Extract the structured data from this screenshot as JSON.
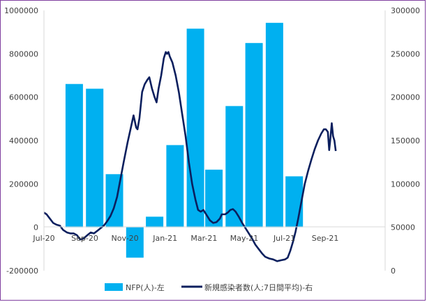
{
  "chart_data": {
    "type": "bar+line",
    "title": "",
    "x_tick_labels": [
      "Jul-20",
      "Sep-20",
      "Nov-20",
      "Jan-21",
      "Mar-21",
      "May-21",
      "Jul-21",
      "Sep-21"
    ],
    "left_axis": {
      "ylim": [
        -200000,
        1000000
      ],
      "ticks": [
        -200000,
        0,
        200000,
        400000,
        600000,
        800000,
        1000000
      ]
    },
    "right_axis": {
      "ylim": [
        0,
        300000
      ],
      "ticks": [
        0,
        50000,
        100000,
        150000,
        200000,
        250000,
        300000
      ]
    },
    "colors": {
      "bars": "#00b0f0",
      "line": "#0b1f5e",
      "axis": "#d9d9d9",
      "frame": "#7f3f9f"
    },
    "legend": {
      "placement": "bottom",
      "bar_label": "NFP(人)-左",
      "line_label": "新規感染者数(人;7日間平均)-右"
    },
    "bar_series": {
      "name": "NFP(人)-左",
      "axis": "left",
      "values": [
        {
          "month": "2020-08",
          "value": 661000
        },
        {
          "month": "2020-09",
          "value": 639000
        },
        {
          "month": "2020-10",
          "value": 245000
        },
        {
          "month": "2020-11",
          "value": -140000
        },
        {
          "month": "2020-12",
          "value": 49000
        },
        {
          "month": "2021-01",
          "value": 379000
        },
        {
          "month": "2021-02",
          "value": 916000
        },
        {
          "month": "2021-03",
          "value": 266000
        },
        {
          "month": "2021-04",
          "value": 559000
        },
        {
          "month": "2021-05",
          "value": 850000
        },
        {
          "month": "2021-06",
          "value": 943000
        },
        {
          "month": "2021-07",
          "value": 235000
        }
      ]
    },
    "line_series": {
      "name": "新規感染者数(人;7日間平均)-右",
      "axis": "right",
      "points": [
        [
          "2020-07-01",
          67000
        ],
        [
          "2020-07-05",
          65000
        ],
        [
          "2020-07-10",
          60000
        ],
        [
          "2020-07-15",
          55000
        ],
        [
          "2020-07-20",
          53000
        ],
        [
          "2020-07-25",
          52000
        ],
        [
          "2020-07-30",
          47000
        ],
        [
          "2020-08-05",
          44000
        ],
        [
          "2020-08-10",
          43000
        ],
        [
          "2020-08-15",
          43000
        ],
        [
          "2020-08-20",
          41000
        ],
        [
          "2020-08-25",
          36000
        ],
        [
          "2020-08-30",
          37000
        ],
        [
          "2020-09-05",
          41000
        ],
        [
          "2020-09-10",
          44000
        ],
        [
          "2020-09-15",
          43000
        ],
        [
          "2020-09-20",
          46000
        ],
        [
          "2020-09-25",
          49000
        ],
        [
          "2020-09-30",
          52000
        ],
        [
          "2020-10-05",
          57000
        ],
        [
          "2020-10-10",
          63000
        ],
        [
          "2020-10-15",
          72000
        ],
        [
          "2020-10-20",
          85000
        ],
        [
          "2020-10-25",
          105000
        ],
        [
          "2020-10-30",
          125000
        ],
        [
          "2020-11-05",
          148000
        ],
        [
          "2020-11-10",
          165000
        ],
        [
          "2020-11-14",
          179000
        ],
        [
          "2020-11-18",
          165000
        ],
        [
          "2020-11-20",
          163000
        ],
        [
          "2020-11-23",
          176000
        ],
        [
          "2020-11-27",
          206000
        ],
        [
          "2020-12-01",
          215000
        ],
        [
          "2020-12-05",
          220000
        ],
        [
          "2020-12-08",
          223000
        ],
        [
          "2020-12-12",
          210000
        ],
        [
          "2020-12-16",
          200000
        ],
        [
          "2020-12-19",
          194000
        ],
        [
          "2020-12-22",
          210000
        ],
        [
          "2020-12-26",
          225000
        ],
        [
          "2020-12-30",
          245000
        ],
        [
          "2021-01-02",
          252000
        ],
        [
          "2021-01-04",
          250000
        ],
        [
          "2021-01-06",
          252000
        ],
        [
          "2021-01-08",
          247000
        ],
        [
          "2021-01-12",
          240000
        ],
        [
          "2021-01-17",
          225000
        ],
        [
          "2021-01-22",
          205000
        ],
        [
          "2021-01-27",
          180000
        ],
        [
          "2021-02-01",
          155000
        ],
        [
          "2021-02-06",
          125000
        ],
        [
          "2021-02-11",
          100000
        ],
        [
          "2021-02-16",
          82000
        ],
        [
          "2021-02-20",
          70000
        ],
        [
          "2021-02-24",
          68000
        ],
        [
          "2021-02-28",
          70000
        ],
        [
          "2021-03-05",
          64000
        ],
        [
          "2021-03-10",
          58000
        ],
        [
          "2021-03-15",
          55000
        ],
        [
          "2021-03-20",
          56000
        ],
        [
          "2021-03-25",
          60000
        ],
        [
          "2021-03-28",
          65000
        ],
        [
          "2021-04-02",
          65000
        ],
        [
          "2021-04-06",
          67000
        ],
        [
          "2021-04-10",
          70000
        ],
        [
          "2021-04-14",
          71000
        ],
        [
          "2021-04-18",
          68000
        ],
        [
          "2021-04-23",
          62000
        ],
        [
          "2021-04-28",
          55000
        ],
        [
          "2021-05-03",
          49000
        ],
        [
          "2021-05-08",
          43000
        ],
        [
          "2021-05-13",
          37000
        ],
        [
          "2021-05-18",
          30000
        ],
        [
          "2021-05-23",
          25000
        ],
        [
          "2021-05-28",
          20000
        ],
        [
          "2021-06-02",
          16000
        ],
        [
          "2021-06-08",
          14000
        ],
        [
          "2021-06-14",
          13000
        ],
        [
          "2021-06-20",
          11000
        ],
        [
          "2021-06-26",
          12000
        ],
        [
          "2021-07-02",
          13000
        ],
        [
          "2021-07-06",
          15000
        ],
        [
          "2021-07-10",
          23000
        ],
        [
          "2021-07-14",
          33000
        ],
        [
          "2021-07-18",
          45000
        ],
        [
          "2021-07-22",
          60000
        ],
        [
          "2021-07-27",
          80000
        ],
        [
          "2021-08-01",
          100000
        ],
        [
          "2021-08-06",
          115000
        ],
        [
          "2021-08-11",
          128000
        ],
        [
          "2021-08-16",
          140000
        ],
        [
          "2021-08-21",
          150000
        ],
        [
          "2021-08-26",
          158000
        ],
        [
          "2021-08-30",
          163000
        ],
        [
          "2021-09-02",
          163000
        ],
        [
          "2021-09-05",
          160000
        ],
        [
          "2021-09-07",
          139000
        ],
        [
          "2021-09-09",
          153000
        ],
        [
          "2021-09-11",
          170000
        ],
        [
          "2021-09-13",
          155000
        ],
        [
          "2021-09-15",
          150000
        ],
        [
          "2021-09-17",
          138000
        ]
      ]
    }
  }
}
